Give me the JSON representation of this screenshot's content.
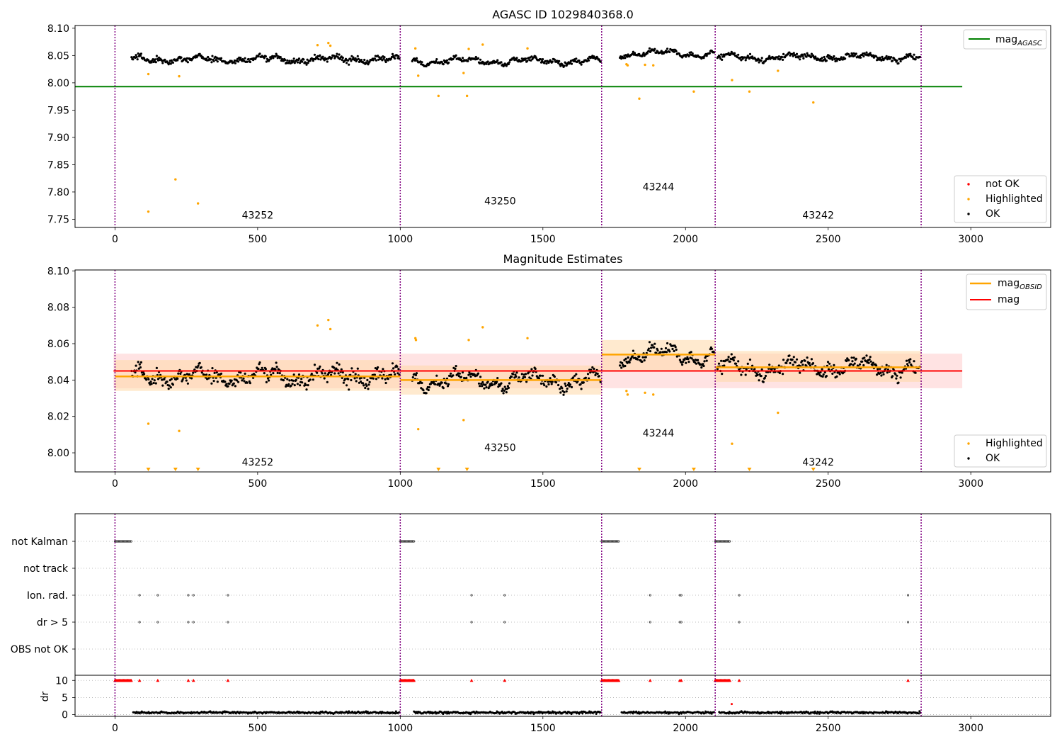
{
  "colors": {
    "ok": "#000000",
    "highlighted": "#ffa500",
    "not_ok": "#ff0000",
    "agasc": "#008000",
    "mag": "#ff0000",
    "mag_obsid": "#ffa500",
    "obs_boundary": "#800080",
    "band_mag": "#ffcccc",
    "band_obsid": "#ffd8a8"
  },
  "chart_data": [
    {
      "type": "scatter",
      "title": "AGASC ID 1029840368.0",
      "xlim": [
        -140,
        3280
      ],
      "ylim": [
        7.735,
        8.105
      ],
      "x_ticks": [
        0,
        500,
        1000,
        1500,
        2000,
        2500,
        3000
      ],
      "y_ticks": [
        "7.75",
        "7.80",
        "7.85",
        "7.90",
        "7.95",
        "8.00",
        "8.05",
        "8.10"
      ],
      "legend_position": "upper right",
      "legend_line": "mag",
      "legend_line_sub": "AGASC",
      "legend_markers": [
        "not OK",
        "Highlighted",
        "OK"
      ],
      "legend_markers_position": "lower right",
      "agasc_mag": 7.993,
      "agasc_xrange": [
        -140,
        2970
      ],
      "obsids": [
        {
          "label": "43252",
          "start": 0,
          "end": 1000,
          "label_x": 500,
          "label_y": 7.751,
          "ok_start": 58,
          "ok_end": 998,
          "ok_mean": 8.043,
          "ok_spread": 0.014
        },
        {
          "label": "43250",
          "start": 1000,
          "end": 1706,
          "label_x": 1350,
          "label_y": 7.777,
          "ok_start": 1042,
          "ok_end": 1704,
          "ok_mean": 8.04,
          "ok_spread": 0.012
        },
        {
          "label": "43244",
          "start": 1706,
          "end": 2104,
          "label_x": 1905,
          "label_y": 7.803,
          "ok_start": 1770,
          "ok_end": 2102,
          "ok_mean": 8.054,
          "ok_spread": 0.011
        },
        {
          "label": "43242",
          "start": 2104,
          "end": 2826,
          "label_x": 2465,
          "label_y": 7.751,
          "ok_start": 2112,
          "ok_end": 2824,
          "ok_mean": 8.047,
          "ok_spread": 0.012
        }
      ],
      "highlighted": [
        [
          117,
          8.016
        ],
        [
          117,
          7.764
        ],
        [
          212,
          7.823
        ],
        [
          225,
          8.012
        ],
        [
          291,
          7.779
        ],
        [
          710,
          8.069
        ],
        [
          748,
          8.073
        ],
        [
          755,
          8.068
        ],
        [
          1053,
          8.063
        ],
        [
          1063,
          8.013
        ],
        [
          1134,
          7.976
        ],
        [
          1222,
          8.018
        ],
        [
          1234,
          7.976
        ],
        [
          1240,
          8.062
        ],
        [
          1289,
          8.07
        ],
        [
          1446,
          8.063
        ],
        [
          1793,
          8.034
        ],
        [
          1797,
          8.032
        ],
        [
          1838,
          7.971
        ],
        [
          1858,
          8.033
        ],
        [
          1887,
          8.032
        ],
        [
          2029,
          7.984
        ],
        [
          2163,
          8.005
        ],
        [
          2224,
          7.984
        ],
        [
          2324,
          8.022
        ],
        [
          2448,
          7.964
        ]
      ]
    },
    {
      "type": "scatter",
      "title": "Magnitude Estimates",
      "xlim": [
        -140,
        3280
      ],
      "ylim": [
        7.9895,
        8.1005
      ],
      "x_ticks": [
        0,
        500,
        1000,
        1500,
        2000,
        2500,
        3000
      ],
      "y_ticks": [
        "8.00",
        "8.02",
        "8.04",
        "8.06",
        "8.08",
        "8.10"
      ],
      "legend_lines": [
        {
          "label": "mag",
          "sub": "OBSID",
          "color": "#ffa500"
        },
        {
          "label": "mag",
          "sub": "",
          "color": "#ff0000"
        }
      ],
      "legend_markers": [
        "Highlighted",
        "OK"
      ],
      "mag": 8.045,
      "mag_band": [
        8.0355,
        8.0545
      ],
      "mag_xrange": [
        -5,
        2970
      ],
      "obsid_mags": [
        {
          "start": 0,
          "end": 1000,
          "mag": 8.042,
          "band": [
            8.034,
            8.051
          ],
          "label": "43252",
          "label_x": 500,
          "label_y": 7.993
        },
        {
          "start": 1000,
          "end": 1706,
          "mag": 8.04,
          "band": [
            8.032,
            8.048
          ],
          "label": "43250",
          "label_x": 1350,
          "label_y": 8.001
        },
        {
          "start": 1706,
          "end": 2104,
          "mag": 8.054,
          "band": [
            8.045,
            8.062
          ],
          "label": "43244",
          "label_x": 1905,
          "label_y": 8.009
        },
        {
          "start": 2104,
          "end": 2826,
          "mag": 8.047,
          "band": [
            8.039,
            8.056
          ],
          "label": "43242",
          "label_x": 2465,
          "label_y": 7.993
        }
      ],
      "highlighted": [
        [
          117,
          8.016
        ],
        [
          225,
          8.012
        ],
        [
          710,
          8.07
        ],
        [
          748,
          8.073
        ],
        [
          755,
          8.068
        ],
        [
          1053,
          8.063
        ],
        [
          1055,
          8.062
        ],
        [
          1063,
          8.013
        ],
        [
          1222,
          8.018
        ],
        [
          1240,
          8.062
        ],
        [
          1289,
          8.069
        ],
        [
          1446,
          8.063
        ],
        [
          1793,
          8.034
        ],
        [
          1797,
          8.032
        ],
        [
          1858,
          8.033
        ],
        [
          1887,
          8.032
        ],
        [
          2163,
          8.005
        ],
        [
          2324,
          8.022
        ]
      ],
      "off_scale_markers_x": [
        117,
        212,
        291,
        1134,
        1234,
        1838,
        2029,
        2224,
        2448
      ]
    },
    {
      "type": "scatter",
      "title": "",
      "xlim": [
        -140,
        3280
      ],
      "x_ticks": [
        0,
        500,
        1000,
        1500,
        2000,
        2500,
        3000
      ],
      "flag_rows": [
        "not Kalman",
        "not track",
        "Ion. rad.",
        "dr > 5",
        "OBS not OK"
      ],
      "flag_points": {
        "not Kalman": [
          [
            0,
            58
          ],
          [
            1000,
            1048
          ],
          [
            1706,
            1768
          ],
          [
            2104,
            2156
          ]
        ],
        "not track": [],
        "Ion. rad.": [
          86,
          150,
          257,
          275,
          396,
          1250,
          1366,
          1876,
          1980,
          1985,
          2188,
          2780
        ],
        "dr > 5": [
          86,
          150,
          257,
          275,
          396,
          1250,
          1366,
          1876,
          1980,
          1985,
          2188,
          2780
        ],
        "OBS not OK": []
      },
      "dr_ylabel": "dr",
      "dr_ylim": [
        -0.5,
        11.5
      ],
      "dr_y_ticks": [
        "0",
        "5",
        "10"
      ],
      "dr_clip_value": 10,
      "dr_clipped": [
        [
          0,
          58
        ],
        [
          1000,
          1048
        ],
        [
          1706,
          1768
        ],
        [
          2104,
          2156
        ]
      ],
      "dr_clipped_extra": [
        86,
        150,
        257,
        275,
        396,
        1250,
        1366,
        1876,
        1980,
        1985,
        2188,
        2780
      ],
      "dr_not_ok": [
        [
          2162,
          3.1
        ]
      ],
      "dr_ok_mean": 0.6
    }
  ]
}
